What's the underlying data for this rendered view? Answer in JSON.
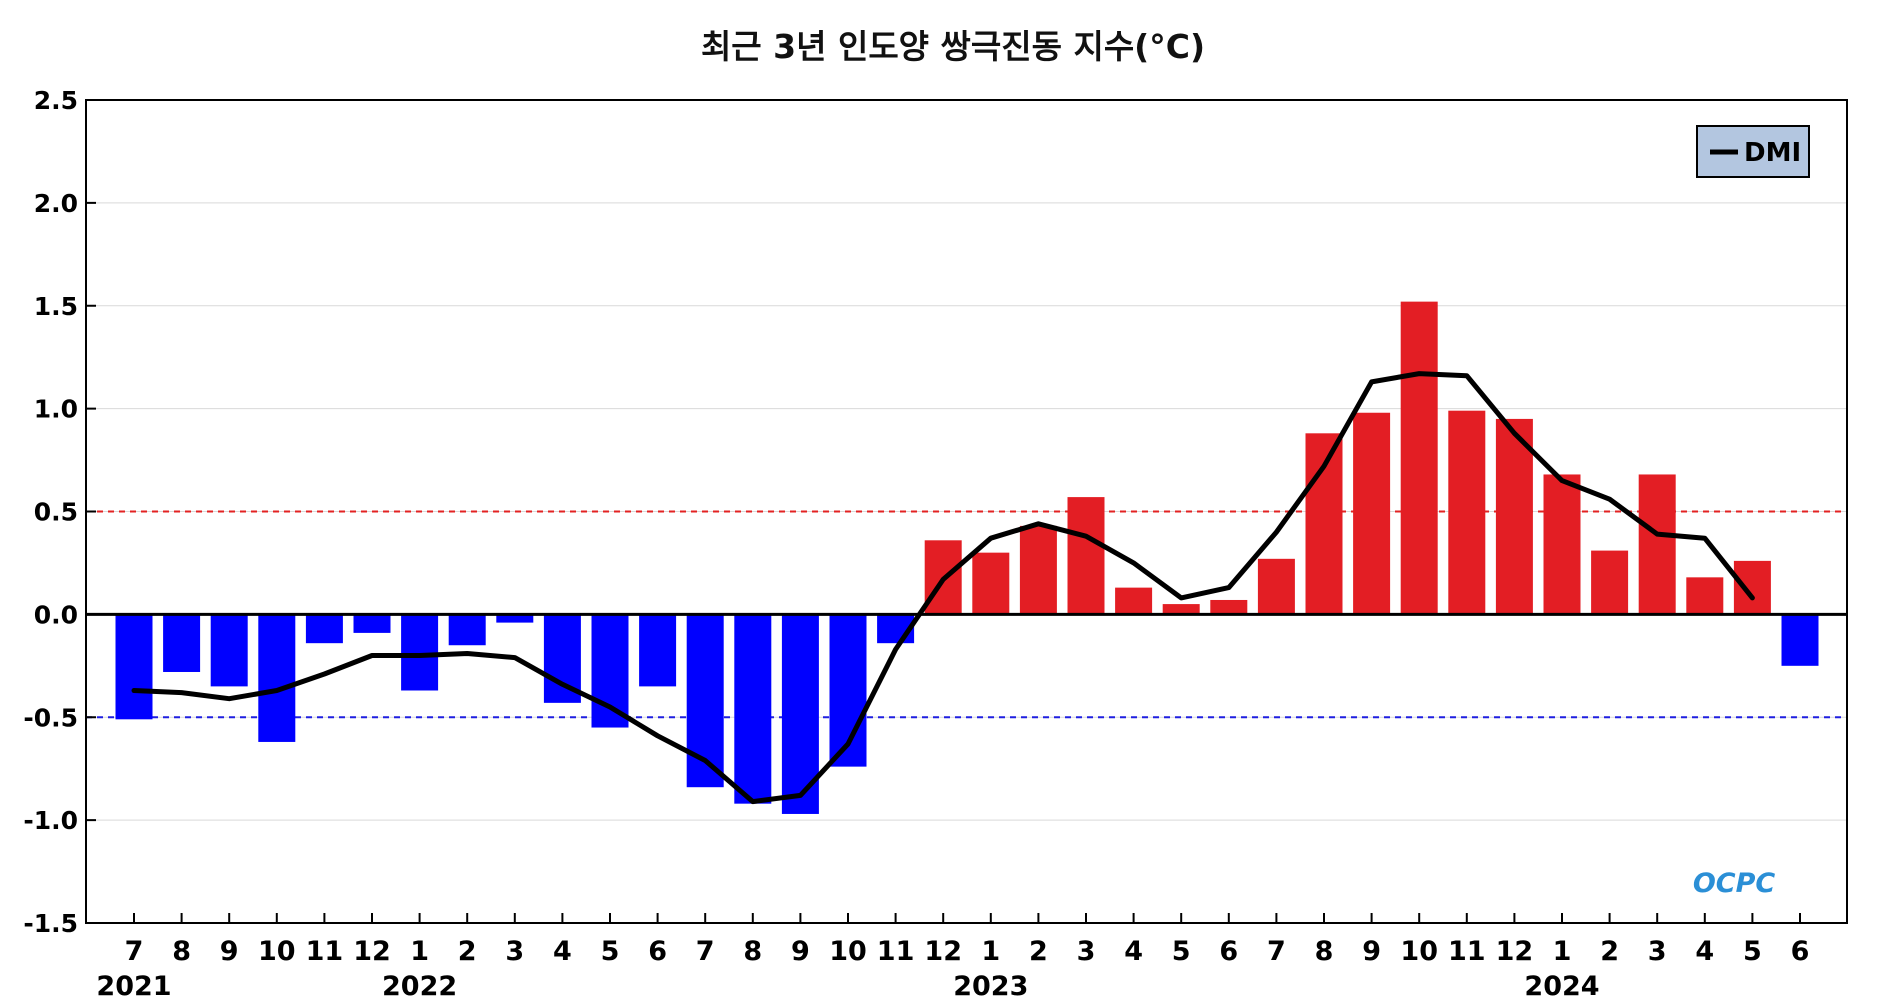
{
  "chart_data": {
    "type": "bar",
    "title": "최근 3년 인도양 쌍극진동 지수(°C)",
    "xlabel": "",
    "ylabel": "",
    "ylim": [
      -1.5,
      2.5
    ],
    "yticks": [
      2.5,
      2.0,
      1.5,
      1.0,
      0.5,
      0.0,
      -0.5,
      -1.0,
      -1.5
    ],
    "ytick_labels": [
      "2.5",
      "2.0",
      "1.5",
      "1.0",
      "0.5",
      "0.0",
      "-0.5",
      "-1.0",
      "-1.5"
    ],
    "categories": [
      "7",
      "8",
      "9",
      "10",
      "11",
      "12",
      "1",
      "2",
      "3",
      "4",
      "5",
      "6",
      "7",
      "8",
      "9",
      "10",
      "11",
      "12",
      "1",
      "2",
      "3",
      "4",
      "5",
      "6",
      "7",
      "8",
      "9",
      "10",
      "11",
      "12",
      "1",
      "2",
      "3",
      "4",
      "5",
      "6"
    ],
    "years": [
      {
        "label": "2021",
        "index": 0
      },
      {
        "label": "2022",
        "index": 6
      },
      {
        "label": "2023",
        "index": 18
      },
      {
        "label": "2024",
        "index": 30
      }
    ],
    "series": [
      {
        "kind": "bar",
        "values": [
          -0.51,
          -0.28,
          -0.35,
          -0.62,
          -0.14,
          -0.09,
          -0.37,
          -0.15,
          -0.04,
          -0.43,
          -0.55,
          -0.35,
          -0.84,
          -0.92,
          -0.97,
          -0.74,
          -0.14,
          0.36,
          0.3,
          0.43,
          0.57,
          0.13,
          0.05,
          0.07,
          0.27,
          0.88,
          0.98,
          1.52,
          0.99,
          0.95,
          0.68,
          0.31,
          0.68,
          0.18,
          0.26,
          -0.25
        ]
      },
      {
        "name": "DMI",
        "kind": "line",
        "values": [
          -0.37,
          -0.38,
          -0.41,
          -0.37,
          -0.29,
          -0.2,
          -0.2,
          -0.19,
          -0.21,
          -0.34,
          -0.45,
          -0.59,
          -0.71,
          -0.91,
          -0.88,
          -0.63,
          -0.17,
          0.17,
          0.37,
          0.44,
          0.38,
          0.25,
          0.08,
          0.13,
          0.4,
          0.72,
          1.13,
          1.17,
          1.16,
          0.88,
          0.65,
          0.56,
          0.39,
          0.37,
          0.08,
          null
        ]
      }
    ],
    "thresholds": [
      {
        "value": 0.5,
        "color": "#e32222"
      },
      {
        "value": -0.5,
        "color": "#1f1fe0"
      }
    ],
    "colors": {
      "positive": "#e31e24",
      "negative": "#0000ff",
      "line": "#000000",
      "legend_bg": "#b3c6e0"
    },
    "legend": {
      "position": "top-right",
      "label": "DMI"
    },
    "grid": true
  },
  "logo": {
    "text": "OCPC"
  }
}
